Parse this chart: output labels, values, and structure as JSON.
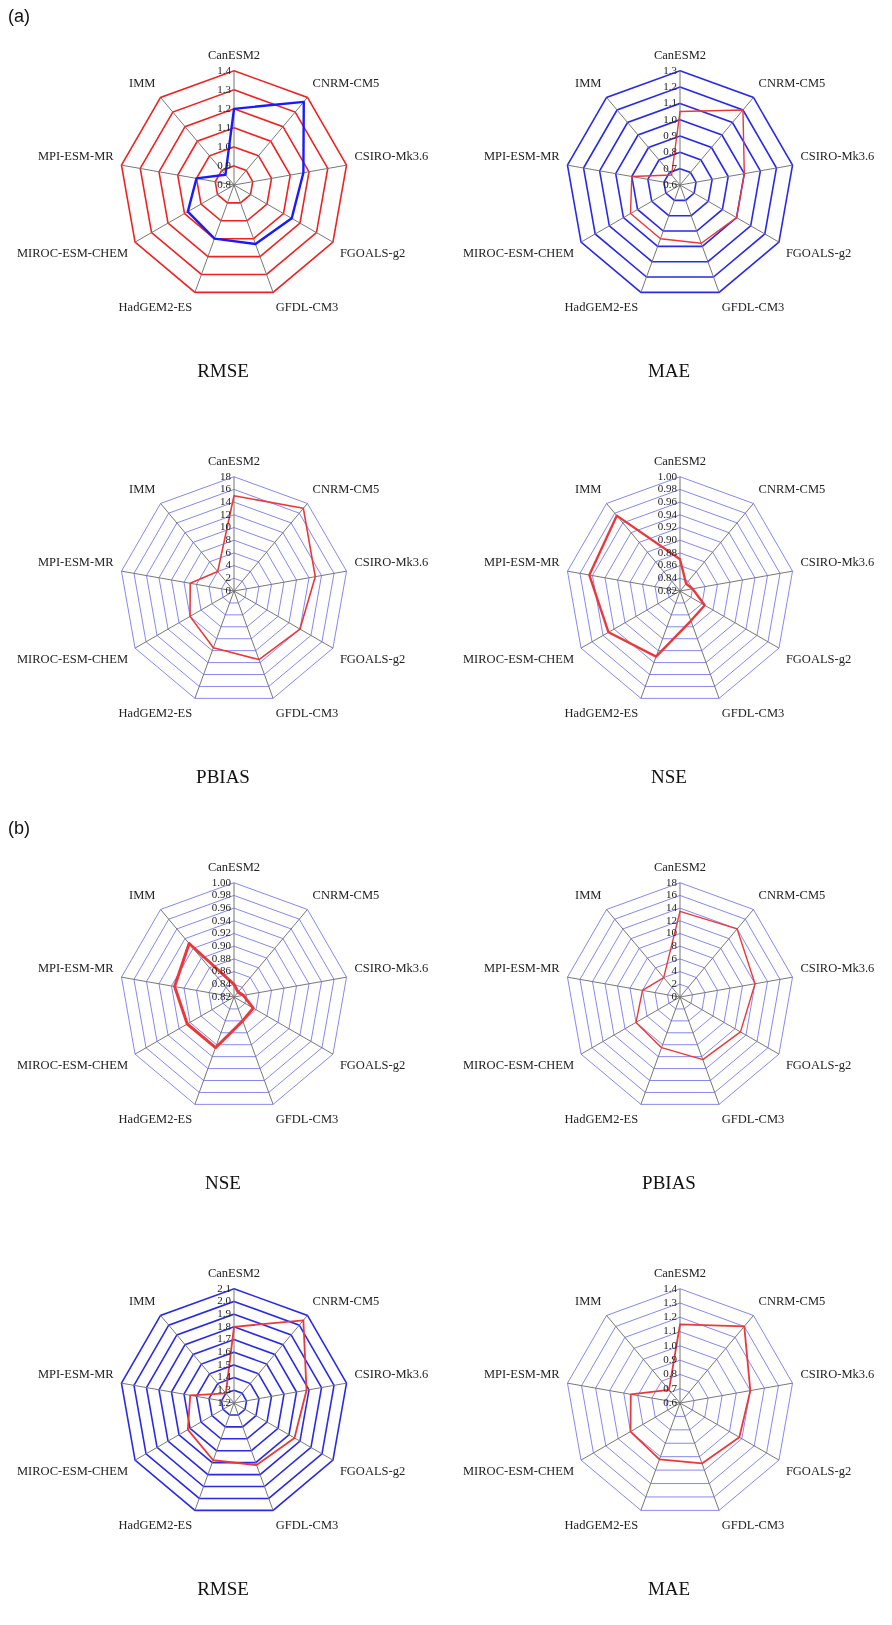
{
  "chart_data": [
    {
      "type": "radar",
      "title": "RMSE",
      "annotations": [
        "(a)"
      ],
      "categories": [
        "CanESM2",
        "CNRM-CM5",
        "CSIRO-Mk3.6",
        "FGOALS-g2",
        "GFDL-CM3",
        "HadGEM2-ES",
        "MIROC-ESM-CHEM",
        "MPI-ESM-MR",
        "IMM"
      ],
      "series": [
        {
          "color": "#1a1aff",
          "values": [
            1.2,
            1.37,
            1.17,
            1.15,
            1.13,
            1.1,
            1.08,
            1.0,
            0.87
          ]
        }
      ],
      "ylim": [
        0.8,
        1.4
      ],
      "yticks": [
        0.8,
        0.9,
        {
          "value": 1,
          "label": "1.0"
        },
        1.1,
        1.2,
        1.3,
        1.4
      ],
      "grid": true,
      "legend": false,
      "marker": "none"
    },
    {
      "type": "radar",
      "title": "MAE",
      "categories": [
        "CanESM2",
        "CNRM-CM5",
        "CSIRO-Mk3.6",
        "FGOALS-g2",
        "GFDL-CM3",
        "HadGEM2-ES",
        "MIROC-ESM-CHEM",
        "MPI-ESM-MR",
        "IMM"
      ],
      "series": [
        {
          "color": "#e8393c",
          "values": [
            1.05,
            1.2,
            1.0,
            1.0,
            0.98,
            0.95,
            0.95,
            0.9,
            0.68
          ]
        }
      ],
      "ylim": [
        0.6,
        1.3
      ],
      "yticks": [
        0.6,
        0.7,
        0.8,
        0.9,
        {
          "value": 1,
          "label": "1.0"
        },
        1.1,
        1.2,
        1.3
      ],
      "grid": true,
      "legend": false,
      "marker": "none"
    },
    {
      "type": "radar",
      "title": "PBIAS",
      "categories": [
        "CanESM2",
        "CNRM-CM5",
        "CSIRO-Mk3.6",
        "FGOALS-g2",
        "GFDL-CM3",
        "HadGEM2-ES",
        "MIROC-ESM-CHEM",
        "MPI-ESM-MR",
        "IMM"
      ],
      "series": [
        {
          "color": "#e8393c",
          "values": [
            15,
            17,
            13,
            12,
            11.5,
            9.5,
            8,
            7,
            4
          ]
        }
      ],
      "ylim": [
        0,
        18
      ],
      "yticks": [
        0,
        2,
        4,
        6,
        8,
        10,
        12,
        14,
        16,
        18
      ],
      "grid": true,
      "legend": false,
      "marker": "none"
    },
    {
      "type": "radar",
      "title": "NSE",
      "categories": [
        "CanESM2",
        "CNRM-CM5",
        "CSIRO-Mk3.6",
        "FGOALS-g2",
        "GFDL-CM3",
        "HadGEM2-ES",
        "MIROC-ESM-CHEM",
        "MPI-ESM-MR",
        "IMM"
      ],
      "series": [
        {
          "color": "#e8393c",
          "values": [
            0.87,
            0.835,
            0.84,
            0.865,
            0.87,
            0.93,
            0.95,
            0.965,
            0.975
          ]
        }
      ],
      "ylim": [
        0.82,
        1.0
      ],
      "yticks": [
        0.82,
        0.84,
        0.86,
        0.88,
        {
          "value": 0.9,
          "label": "0.90"
        },
        0.92,
        0.94,
        0.96,
        0.98,
        {
          "value": 1,
          "label": "1.00"
        }
      ],
      "grid": true,
      "legend": false,
      "marker": "none"
    },
    {
      "type": "radar",
      "title": "NSE",
      "annotations": [
        "(b)"
      ],
      "categories": [
        "CanESM2",
        "CNRM-CM5",
        "CSIRO-Mk3.6",
        "FGOALS-g2",
        "GFDL-CM3",
        "HadGEM2-ES",
        "MIROC-ESM-CHEM",
        "MPI-ESM-MR",
        "IMM"
      ],
      "series": [
        {
          "color": "#e8393c",
          "values": [
            0.84,
            0.83,
            0.835,
            0.855,
            0.86,
            0.905,
            0.905,
            0.915,
            0.93
          ]
        }
      ],
      "ylim": [
        0.82,
        1.0
      ],
      "yticks": [
        0.82,
        0.84,
        0.86,
        0.88,
        {
          "value": 0.9,
          "label": "0.90"
        },
        0.92,
        0.94,
        0.96,
        0.98,
        {
          "value": 1,
          "label": "1.00"
        }
      ],
      "grid": true,
      "legend": false,
      "marker": "none"
    },
    {
      "type": "radar",
      "title": "PBIAS",
      "categories": [
        "CanESM2",
        "CNRM-CM5",
        "CSIRO-Mk3.6",
        "FGOALS-g2",
        "GFDL-CM3",
        "HadGEM2-ES",
        "MIROC-ESM-CHEM",
        "MPI-ESM-MR",
        "IMM"
      ],
      "series": [
        {
          "color": "#e8393c",
          "values": [
            13.5,
            14,
            12,
            11,
            10.5,
            8.5,
            8,
            6,
            4
          ]
        }
      ],
      "ylim": [
        0,
        18
      ],
      "yticks": [
        0,
        2,
        4,
        6,
        8,
        10,
        12,
        14,
        16,
        18
      ],
      "grid": true,
      "legend": false,
      "marker": "none"
    },
    {
      "type": "radar",
      "title": "RMSE",
      "categories": [
        "CanESM2",
        "CNRM-CM5",
        "CSIRO-Mk3.6",
        "FGOALS-g2",
        "GFDL-CM3",
        "HadGEM2-ES",
        "MIROC-ESM-CHEM",
        "MPI-ESM-MR",
        "IMM"
      ],
      "series": [
        {
          "color": "#e8393c",
          "values": [
            1.8,
            2.05,
            1.78,
            1.75,
            1.72,
            1.68,
            1.62,
            1.55,
            1.3
          ]
        }
      ],
      "ylim": [
        1.2,
        2.1
      ],
      "yticks": [
        1.2,
        1.3,
        1.4,
        1.5,
        1.6,
        1.7,
        1.8,
        1.9,
        {
          "value": 2,
          "label": "2.0"
        },
        2.1
      ],
      "grid": true,
      "legend": false,
      "marker": "none"
    },
    {
      "type": "radar",
      "title": "MAE",
      "categories": [
        "CanESM2",
        "CNRM-CM5",
        "CSIRO-Mk3.6",
        "FGOALS-g2",
        "GFDL-CM3",
        "HadGEM2-ES",
        "MIROC-ESM-CHEM",
        "MPI-ESM-MR",
        "IMM"
      ],
      "series": [
        {
          "color": "#e8393c",
          "values": [
            1.15,
            1.3,
            1.1,
            1.08,
            1.05,
            1.02,
            1.0,
            0.95,
            0.72
          ]
        }
      ],
      "ylim": [
        0.6,
        1.4
      ],
      "yticks": [
        0.6,
        0.7,
        0.8,
        0.9,
        {
          "value": 1,
          "label": "1.0"
        },
        1.1,
        1.2,
        1.3,
        1.4
      ],
      "grid": true,
      "legend": false,
      "marker": "none"
    }
  ]
}
